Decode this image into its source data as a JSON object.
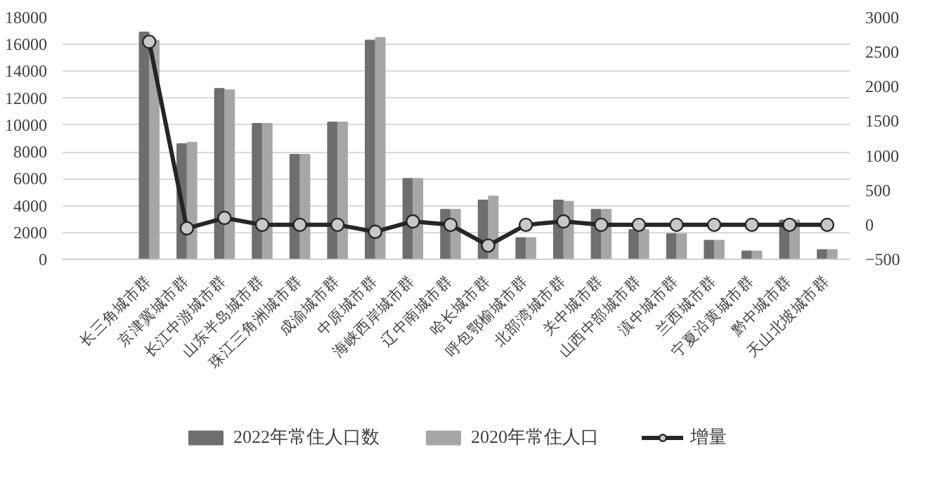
{
  "chart_data": {
    "type": "bar",
    "categories": [
      "长三角城市群",
      "京津冀城市群",
      "长江中游城市群",
      "山东半岛城市群",
      "珠江三角洲城市群",
      "成渝城市群",
      "中原城市群",
      "海峡西岸城市群",
      "辽中南城市群",
      "哈长城市群",
      "呼包鄂榆城市群",
      "北部湾城市群",
      "关中城市群",
      "山西中部城市群",
      "滇中城市群",
      "兰西城市群",
      "宁夏沿黄城市群",
      "黔中城市群",
      "天山北坡城市群"
    ],
    "series": [
      {
        "name": "2022年常住人口数",
        "color": "#6e6e6e",
        "values": [
          16900,
          8600,
          12700,
          10100,
          7800,
          10200,
          16300,
          6000,
          3700,
          4400,
          1600,
          4400,
          3700,
          2200,
          1900,
          1400,
          600,
          2900,
          700
        ]
      },
      {
        "name": "2020年常住人口",
        "color": "#a6a6a6",
        "values": [
          16300,
          8700,
          12600,
          10100,
          7800,
          10200,
          16500,
          6000,
          3700,
          4700,
          1600,
          4300,
          3700,
          2200,
          1900,
          1400,
          600,
          2900,
          700
        ]
      },
      {
        "name": "增量",
        "type": "line",
        "axis": "y2",
        "color": "#262626",
        "marker": "circle",
        "values": [
          2650,
          -50,
          100,
          0,
          0,
          0,
          -100,
          50,
          0,
          -300,
          0,
          50,
          0,
          0,
          0,
          0,
          0,
          0,
          0
        ]
      }
    ],
    "ylim": [
      0,
      18000
    ],
    "yticks": [
      0,
      2000,
      4000,
      6000,
      8000,
      10000,
      12000,
      14000,
      16000,
      18000
    ],
    "y2lim": [
      -500,
      3000
    ],
    "y2ticks": [
      -500,
      0,
      500,
      1000,
      1500,
      2000,
      2500,
      3000
    ],
    "grid": "y",
    "legend": "bottom"
  }
}
